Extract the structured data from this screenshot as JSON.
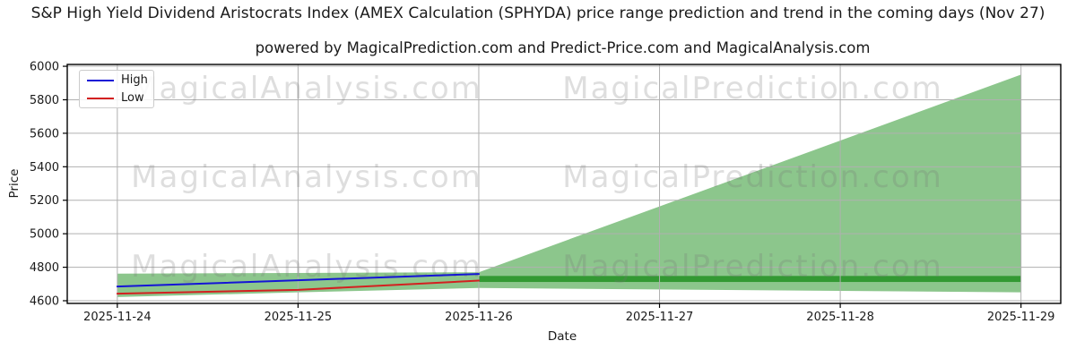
{
  "title": "S&P High Yield Dividend Aristocrats Index (AMEX Calculation (SPHYDA) price range prediction and trend in the coming days (Nov 27)",
  "subtitle": "powered by MagicalPrediction.com and Predict-Price.com and MagicalAnalysis.com",
  "axes": {
    "x_label": "Date",
    "y_label": "Price"
  },
  "legend": {
    "items": [
      {
        "label": "High",
        "color": "#1414d6"
      },
      {
        "label": "Low",
        "color": "#d32020"
      }
    ]
  },
  "watermarks": [
    {
      "text": "MagicalAnalysis.com",
      "fx": 0.241,
      "fy": 0.097
    },
    {
      "text": "MagicalPrediction.com",
      "fx": 0.69,
      "fy": 0.097
    },
    {
      "text": "MagicalAnalysis.com",
      "fx": 0.241,
      "fy": 0.468
    },
    {
      "text": "MagicalPrediction.com",
      "fx": 0.69,
      "fy": 0.468
    },
    {
      "text": "MagicalAnalysis.com",
      "fx": 0.241,
      "fy": 0.843
    },
    {
      "text": "MagicalPrediction.com",
      "fx": 0.69,
      "fy": 0.843
    }
  ],
  "chart_data": {
    "type": "line",
    "title": "S&P High Yield Dividend Aristocrats Index (AMEX Calculation (SPHYDA) price range prediction and trend in the coming days (Nov 27)",
    "xlabel": "Date",
    "ylabel": "Price",
    "x_tick_labels": [
      "2025-11-24",
      "2025-11-25",
      "2025-11-26",
      "2025-11-27",
      "2025-11-28",
      "2025-11-29"
    ],
    "y_ticks": [
      4600,
      4800,
      5000,
      5200,
      5400,
      5600,
      5800,
      6000
    ],
    "xlim_days": [
      -0.277,
      5.22
    ],
    "ylim": [
      4584,
      6011
    ],
    "grid": true,
    "legend_position": "upper left",
    "grid_color": "#b0b0b0",
    "series": [
      {
        "name": "High",
        "color": "#1414d6",
        "x_days": [
          0,
          1,
          2
        ],
        "values": [
          4685,
          4722,
          4760
        ]
      },
      {
        "name": "Low",
        "color": "#d32020",
        "x_days": [
          0,
          1,
          2
        ],
        "values": [
          4642,
          4665,
          4720
        ]
      }
    ],
    "prediction_band": {
      "comment": "green shaded range: narrow over history, fan expanding to last date",
      "color": "#8cc68c",
      "x_days": [
        0,
        1,
        2,
        5
      ],
      "high": [
        4762,
        4766,
        4770,
        5950
      ],
      "low": [
        4622,
        4650,
        4676,
        4650
      ]
    },
    "forecast_range_band": {
      "comment": "dark green horizontal predicted-range band from 2025-11-26 to 2025-11-29",
      "color": "#339933",
      "x_start_day": 2,
      "x_end_day": 5,
      "high": 4748,
      "low": 4712
    }
  }
}
